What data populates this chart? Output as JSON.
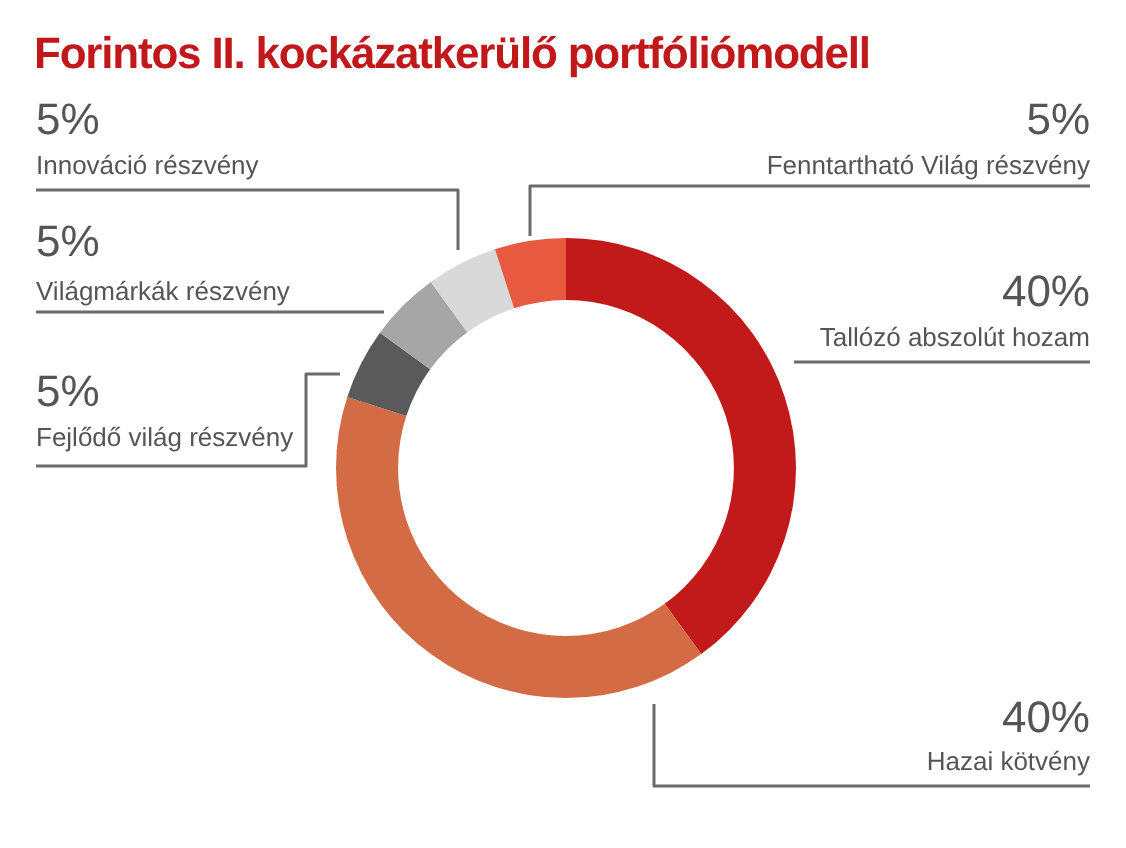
{
  "chart_data": {
    "type": "donut",
    "title": "Forintos II. kockázatkerülő portfóliómodell",
    "categories": [
      "Tallózó abszolút hozam",
      "Hazai kötvény",
      "Fejlődő világ részvény",
      "Világmárkák részvény",
      "Innováció részvény",
      "Fenntartható Világ részvény"
    ],
    "values": [
      40,
      40,
      5,
      5,
      5,
      5
    ],
    "value_labels": [
      "40%",
      "40%",
      "5%",
      "5%",
      "5%",
      "5%"
    ],
    "colors": [
      "#c21a1a",
      "#d36b45",
      "#5a5a5a",
      "#a6a6a6",
      "#d9d9d9",
      "#e85a40"
    ]
  }
}
